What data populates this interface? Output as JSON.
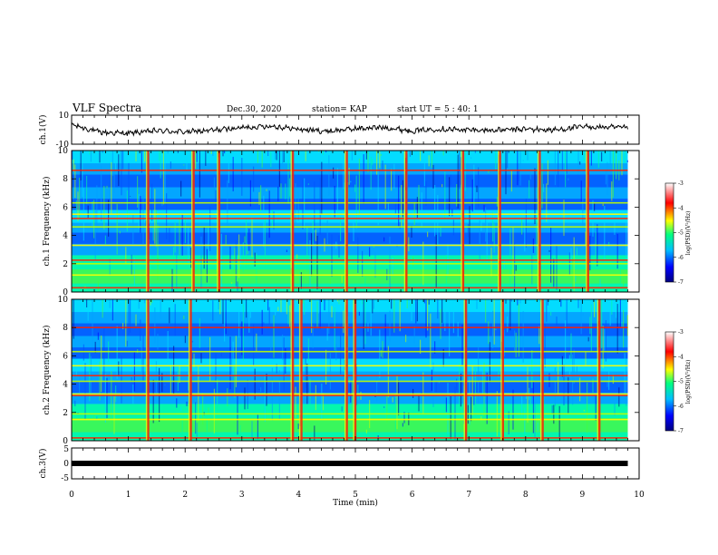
{
  "header": {
    "title": "VLF Spectra",
    "date": "Dec.30, 2020",
    "station": "station= KAP",
    "start": "start UT =",
    "start_time": "5 : 40: 1"
  },
  "chart_data": [
    {
      "type": "line",
      "panel": "ch1-waveform",
      "ylabel": "ch.1(V)",
      "ylim": [
        -10,
        10
      ],
      "yticks": [
        "10",
        "-10"
      ],
      "x": [
        0,
        0.5,
        1,
        1.5,
        2,
        2.5,
        3,
        3.5,
        4,
        4.5,
        5,
        5.5,
        6,
        6.5,
        7,
        7.5,
        8,
        8.5,
        9,
        9.5,
        9.8
      ],
      "values": [
        3.5,
        -1.8,
        -2.5,
        -0.7,
        -1.6,
        -0.4,
        1.4,
        2.6,
        0.3,
        -1.1,
        0.7,
        1.6,
        -0.8,
        0.5,
        -0.2,
        -0.4,
        0.4,
        -0.3,
        2,
        1.6,
        1.1
      ],
      "xlim": [
        0,
        10
      ],
      "color": "#000000"
    },
    {
      "type": "heatmap",
      "panel": "ch1-spectrogram",
      "ylabel": "ch.1 Frequency (kHz)",
      "ylim": [
        0,
        10
      ],
      "yticks": [
        "0",
        "2",
        "4",
        "6",
        "8",
        "10"
      ],
      "xlim": [
        0,
        10
      ],
      "data_end_min": 9.8,
      "horizontal_lines_khz": [
        0.3,
        1.2,
        2.0,
        2.25,
        3.3,
        4.6,
        5.2,
        5.5,
        6.3,
        8.6
      ],
      "strong_vertical_events_min": [
        1.35,
        2.15,
        2.6,
        3.9,
        4.85,
        5.9,
        6.9,
        7.55,
        8.25,
        9.1
      ],
      "colorbar": {
        "label": "log(PSD)(V²/Hz)",
        "range": [
          -7,
          -3
        ],
        "ticks": [
          "-3",
          "-4",
          "-5",
          "-6",
          "-7"
        ],
        "colormap": [
          "#000080",
          "#0000ff",
          "#00bfff",
          "#00ff80",
          "#ffff00",
          "#ff0000",
          "#ffffff"
        ]
      }
    },
    {
      "type": "heatmap",
      "panel": "ch2-spectrogram",
      "ylabel": "ch.2 Frequency (kHz)",
      "ylim": [
        0,
        10
      ],
      "yticks": [
        "0",
        "2",
        "4",
        "6",
        "8",
        "10"
      ],
      "xlim": [
        0,
        10
      ],
      "data_end_min": 9.8,
      "horizontal_lines_khz": [
        0.2,
        1.5,
        1.9,
        3.2,
        3.3,
        4.2,
        4.6,
        5.3,
        6.3,
        8.0
      ],
      "strong_vertical_events_min": [
        1.35,
        2.1,
        3.9,
        4.05,
        4.85,
        5.0,
        6.95,
        7.6,
        8.3,
        9.3
      ],
      "colorbar": {
        "label": "log(PSD)(V²/Hz)",
        "range": [
          -7,
          -3
        ],
        "ticks": [
          "-3",
          "-4",
          "-5",
          "-6",
          "-7"
        ],
        "colormap": [
          "#000080",
          "#0000ff",
          "#00bfff",
          "#00ff80",
          "#ffff00",
          "#ff0000",
          "#ffffff"
        ]
      }
    },
    {
      "type": "line",
      "panel": "ch3-waveform",
      "ylabel": "ch.3(V)",
      "ylim": [
        -5,
        5
      ],
      "yticks": [
        "5",
        "0",
        "-5"
      ],
      "x": [
        0,
        9.8
      ],
      "values": [
        0,
        0
      ],
      "xlim": [
        0,
        10
      ],
      "color": "#000000"
    }
  ],
  "xaxis": {
    "label": "Time  (min)",
    "ticks": [
      "0",
      "1",
      "2",
      "3",
      "4",
      "5",
      "6",
      "7",
      "8",
      "9",
      "10"
    ]
  }
}
